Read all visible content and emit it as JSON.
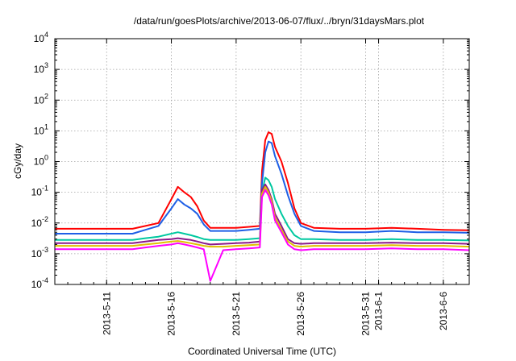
{
  "chart_data": {
    "type": "line",
    "title": "/data/run/goesPlots/archive/2013-06-07/flux/../bryn/31daysMars.plot",
    "xlabel": "Coordinated Universal Time (UTC)",
    "ylabel": "cGy/day",
    "yscale": "log",
    "ylim": [
      0.0001,
      10000
    ],
    "y_ticks": [
      {
        "base": "10",
        "exp": "-4",
        "value": 0.0001
      },
      {
        "base": "10",
        "exp": "-3",
        "value": 0.001
      },
      {
        "base": "10",
        "exp": "-2",
        "value": 0.01
      },
      {
        "base": "10",
        "exp": "-1",
        "value": 0.1
      },
      {
        "base": "10",
        "exp": "0",
        "value": 1
      },
      {
        "base": "10",
        "exp": "1",
        "value": 10
      },
      {
        "base": "10",
        "exp": "2",
        "value": 100
      },
      {
        "base": "10",
        "exp": "3",
        "value": 1000
      },
      {
        "base": "10",
        "exp": "4",
        "value": 10000
      }
    ],
    "xlim": [
      "2013-05-07",
      "2013-06-08"
    ],
    "x_ticks": [
      {
        "label": "2013-5-11",
        "date": "2013-05-11"
      },
      {
        "label": "2013-5-16",
        "date": "2013-05-16"
      },
      {
        "label": "2013-5-21",
        "date": "2013-05-21"
      },
      {
        "label": "2013-5-26",
        "date": "2013-05-26"
      },
      {
        "label": "2013-5-31",
        "date": "2013-05-31"
      },
      {
        "label": "2013-6-1",
        "date": "2013-06-01"
      },
      {
        "label": "2013-6-6",
        "date": "2013-06-06"
      }
    ],
    "grid": true,
    "legend": "none",
    "series": [
      {
        "color": "#ff0000",
        "x": [
          "2013-05-07",
          "2013-05-10",
          "2013-05-13",
          "2013-05-14",
          "2013-05-15",
          "2013-05-16",
          "2013-05-16T12:00",
          "2013-05-17",
          "2013-05-17T12:00",
          "2013-05-18",
          "2013-05-18T12:00",
          "2013-05-19",
          "2013-05-20",
          "2013-05-21",
          "2013-05-22",
          "2013-05-22T20:00",
          "2013-05-23",
          "2013-05-23T06:00",
          "2013-05-23T12:00",
          "2013-05-23T18:00",
          "2013-05-24",
          "2013-05-24T12:00",
          "2013-05-25",
          "2013-05-25T12:00",
          "2013-05-26",
          "2013-05-27",
          "2013-05-29",
          "2013-05-31",
          "2013-06-02",
          "2013-06-04",
          "2013-06-06",
          "2013-06-08"
        ],
        "y": [
          0.0065,
          0.0065,
          0.0065,
          0.008,
          0.01,
          0.06,
          0.15,
          0.1,
          0.07,
          0.035,
          0.012,
          0.007,
          0.007,
          0.007,
          0.0075,
          0.008,
          0.5,
          5,
          9,
          8,
          3,
          1.0,
          0.2,
          0.03,
          0.01,
          0.007,
          0.0065,
          0.0065,
          0.007,
          0.0065,
          0.006,
          0.0058
        ]
      },
      {
        "color": "#1e5fe6",
        "x": [
          "2013-05-07",
          "2013-05-10",
          "2013-05-13",
          "2013-05-14",
          "2013-05-15",
          "2013-05-16",
          "2013-05-16T12:00",
          "2013-05-17",
          "2013-05-17T12:00",
          "2013-05-18",
          "2013-05-18T12:00",
          "2013-05-19",
          "2013-05-20",
          "2013-05-21",
          "2013-05-22",
          "2013-05-22T20:00",
          "2013-05-23",
          "2013-05-23T06:00",
          "2013-05-23T12:00",
          "2013-05-23T18:00",
          "2013-05-24",
          "2013-05-24T12:00",
          "2013-05-25",
          "2013-05-25T12:00",
          "2013-05-26",
          "2013-05-27",
          "2013-05-29",
          "2013-05-31",
          "2013-06-02",
          "2013-06-04",
          "2013-06-06",
          "2013-06-08"
        ],
        "y": [
          0.0045,
          0.0045,
          0.0045,
          0.006,
          0.008,
          0.03,
          0.06,
          0.04,
          0.03,
          0.02,
          0.009,
          0.0055,
          0.0055,
          0.0055,
          0.006,
          0.0065,
          0.2,
          2,
          4.5,
          4,
          1.5,
          0.4,
          0.08,
          0.02,
          0.008,
          0.0055,
          0.005,
          0.005,
          0.0055,
          0.005,
          0.005,
          0.0048
        ]
      },
      {
        "color": "#00c8a0",
        "x": [
          "2013-05-07",
          "2013-05-10",
          "2013-05-13",
          "2013-05-14",
          "2013-05-15",
          "2013-05-16",
          "2013-05-16T12:00",
          "2013-05-17",
          "2013-05-17T12:00",
          "2013-05-18",
          "2013-05-18T12:00",
          "2013-05-19",
          "2013-05-20",
          "2013-05-21",
          "2013-05-22",
          "2013-05-22T20:00",
          "2013-05-23",
          "2013-05-23T06:00",
          "2013-05-23T12:00",
          "2013-05-23T18:00",
          "2013-05-24",
          "2013-05-24T12:00",
          "2013-05-25",
          "2013-05-25T12:00",
          "2013-05-26",
          "2013-05-27",
          "2013-05-29",
          "2013-05-31",
          "2013-06-02",
          "2013-06-04",
          "2013-06-06",
          "2013-06-08"
        ],
        "y": [
          0.0028,
          0.0028,
          0.0028,
          0.0032,
          0.0036,
          0.0045,
          0.005,
          0.0045,
          0.004,
          0.0035,
          0.003,
          0.0028,
          0.0028,
          0.0028,
          0.003,
          0.0032,
          0.1,
          0.3,
          0.25,
          0.15,
          0.06,
          0.02,
          0.008,
          0.004,
          0.003,
          0.003,
          0.0028,
          0.0028,
          0.003,
          0.0028,
          0.0028,
          0.0027
        ]
      },
      {
        "color": "#8b1a8b",
        "x": [
          "2013-05-07",
          "2013-05-10",
          "2013-05-13",
          "2013-05-14",
          "2013-05-15",
          "2013-05-16",
          "2013-05-16T12:00",
          "2013-05-17",
          "2013-05-17T12:00",
          "2013-05-18",
          "2013-05-18T12:00",
          "2013-05-19",
          "2013-05-20",
          "2013-05-21",
          "2013-05-22",
          "2013-05-22T20:00",
          "2013-05-23",
          "2013-05-23T06:00",
          "2013-05-23T12:00",
          "2013-05-23T18:00",
          "2013-05-24",
          "2013-05-24T12:00",
          "2013-05-25",
          "2013-05-25T12:00",
          "2013-05-26",
          "2013-05-27",
          "2013-05-29",
          "2013-05-31",
          "2013-06-02",
          "2013-06-04",
          "2013-06-06",
          "2013-06-08"
        ],
        "y": [
          0.0022,
          0.0022,
          0.0022,
          0.0025,
          0.0028,
          0.003,
          0.0032,
          0.003,
          0.0028,
          0.0025,
          0.0022,
          0.002,
          0.0021,
          0.0022,
          0.0023,
          0.0025,
          0.12,
          0.18,
          0.12,
          0.06,
          0.02,
          0.008,
          0.003,
          0.0022,
          0.0021,
          0.0022,
          0.0022,
          0.0022,
          0.0023,
          0.0022,
          0.0022,
          0.0021
        ]
      },
      {
        "color": "#e0c000",
        "x": [
          "2013-05-07",
          "2013-05-10",
          "2013-05-13",
          "2013-05-14",
          "2013-05-15",
          "2013-05-16",
          "2013-05-16T12:00",
          "2013-05-17",
          "2013-05-17T12:00",
          "2013-05-18",
          "2013-05-18T12:00",
          "2013-05-19",
          "2013-05-20",
          "2013-05-21",
          "2013-05-22",
          "2013-05-22T20:00",
          "2013-05-23",
          "2013-05-23T06:00",
          "2013-05-23T12:00",
          "2013-05-23T18:00",
          "2013-05-24",
          "2013-05-24T12:00",
          "2013-05-25",
          "2013-05-25T12:00",
          "2013-05-26",
          "2013-05-27",
          "2013-05-29",
          "2013-05-31",
          "2013-06-02",
          "2013-06-04",
          "2013-06-06",
          "2013-06-08"
        ],
        "y": [
          0.0018,
          0.0018,
          0.0018,
          0.002,
          0.0022,
          0.0025,
          0.0026,
          0.0024,
          0.0022,
          0.002,
          0.0018,
          0.0017,
          0.0017,
          0.0018,
          0.0019,
          0.002,
          0.09,
          0.15,
          0.1,
          0.05,
          0.015,
          0.006,
          0.0025,
          0.0018,
          0.0017,
          0.0018,
          0.0018,
          0.0018,
          0.0019,
          0.0018,
          0.0018,
          0.0017
        ]
      },
      {
        "color": "#ff00ff",
        "x": [
          "2013-05-07",
          "2013-05-10",
          "2013-05-13",
          "2013-05-14",
          "2013-05-15",
          "2013-05-16",
          "2013-05-16T12:00",
          "2013-05-17",
          "2013-05-17T12:00",
          "2013-05-18",
          "2013-05-18T12:00",
          "2013-05-19",
          "2013-05-20",
          "2013-05-21",
          "2013-05-22",
          "2013-05-22T20:00",
          "2013-05-23",
          "2013-05-23T06:00",
          "2013-05-23T12:00",
          "2013-05-23T18:00",
          "2013-05-24",
          "2013-05-24T12:00",
          "2013-05-25",
          "2013-05-25T12:00",
          "2013-05-26",
          "2013-05-27",
          "2013-05-29",
          "2013-05-31",
          "2013-06-02",
          "2013-06-04",
          "2013-06-06",
          "2013-06-08"
        ],
        "y": [
          0.0014,
          0.0014,
          0.0014,
          0.0016,
          0.0018,
          0.002,
          0.0022,
          0.002,
          0.0018,
          0.0016,
          0.0014,
          0.00013,
          0.0013,
          0.0014,
          0.0015,
          0.0016,
          0.07,
          0.12,
          0.08,
          0.04,
          0.012,
          0.005,
          0.002,
          0.0014,
          0.0013,
          0.0014,
          0.0014,
          0.0014,
          0.0015,
          0.0014,
          0.0014,
          0.0013
        ]
      }
    ]
  }
}
